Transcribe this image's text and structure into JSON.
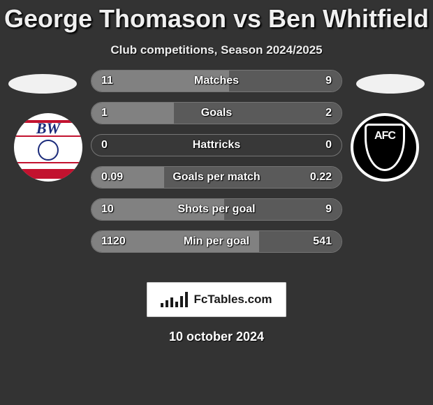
{
  "title": "George Thomason vs Ben Whitfield",
  "subtitle": "Club competitions, Season 2024/2025",
  "date": "10 october 2024",
  "footer_brand": "FcTables.com",
  "flag_left_color": "#f1f1f1",
  "flag_right_color": "#f1f1f1",
  "crest_left_text": "BW",
  "crest_right_text": "AFC",
  "colors": {
    "left_fill": "#818181",
    "right_fill": "#5a5a5a",
    "row_bg": "#383838",
    "row_border": "#767676",
    "background": "#333333",
    "text": "#ffffff"
  },
  "rows": [
    {
      "label": "Matches",
      "left": "11",
      "right": "9",
      "left_pct": 55,
      "right_pct": 45
    },
    {
      "label": "Goals",
      "left": "1",
      "right": "2",
      "left_pct": 33,
      "right_pct": 67
    },
    {
      "label": "Hattricks",
      "left": "0",
      "right": "0",
      "left_pct": 0,
      "right_pct": 0
    },
    {
      "label": "Goals per match",
      "left": "0.09",
      "right": "0.22",
      "left_pct": 29,
      "right_pct": 71
    },
    {
      "label": "Shots per goal",
      "left": "10",
      "right": "9",
      "left_pct": 53,
      "right_pct": 47
    },
    {
      "label": "Min per goal",
      "left": "1120",
      "right": "541",
      "left_pct": 67,
      "right_pct": 33
    }
  ],
  "logo_bar_heights": [
    6,
    10,
    14,
    8,
    16,
    22
  ]
}
